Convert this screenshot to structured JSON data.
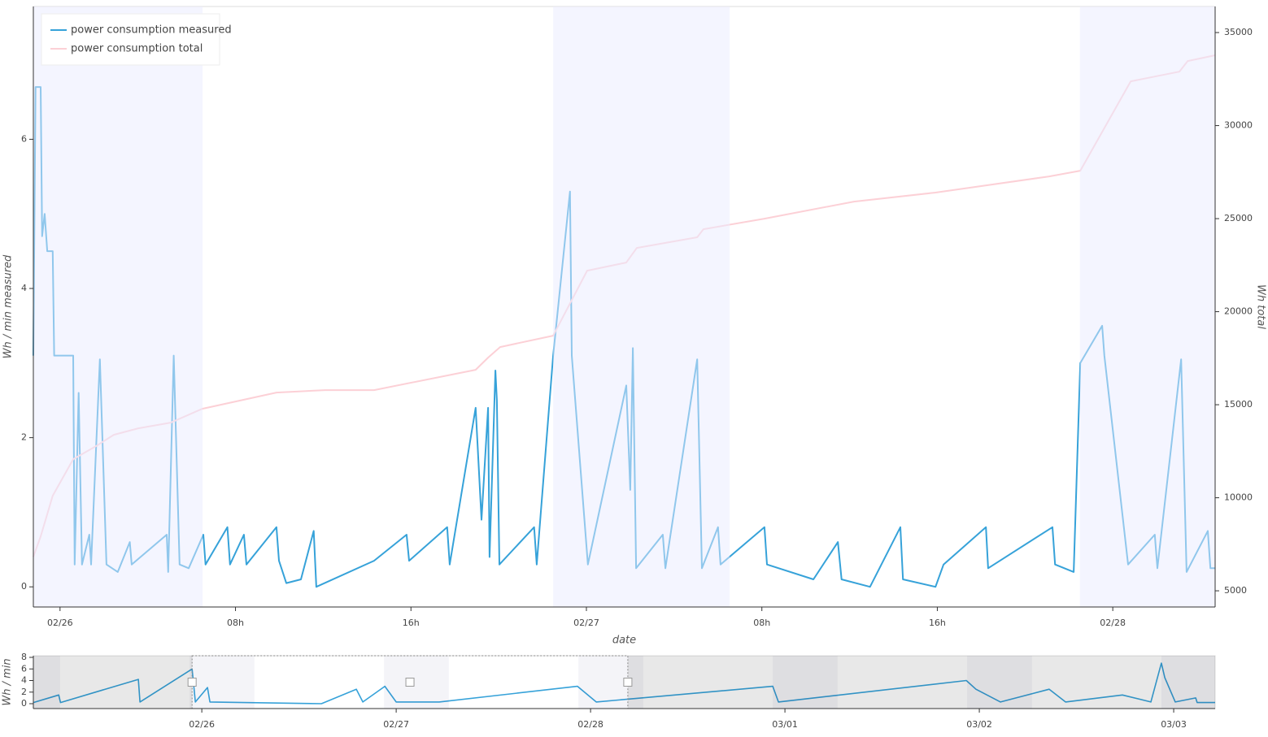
{
  "chart_data": [
    {
      "type": "line",
      "xlabel": "date",
      "ylabel": "Wh / min measured",
      "y2label": "Wh total",
      "xlim": [
        "02/25 22:47",
        "02/28 04:40"
      ],
      "xticks": [
        {
          "value": "02/26 00:00",
          "label": "02/26"
        },
        {
          "value": "02/26 08:00",
          "label": "08h"
        },
        {
          "value": "02/26 16:00",
          "label": "16h"
        },
        {
          "value": "02/27 00:00",
          "label": "02/27"
        },
        {
          "value": "02/27 08:00",
          "label": "08h"
        },
        {
          "value": "02/27 16:00",
          "label": "16h"
        },
        {
          "value": "02/28 00:00",
          "label": "02/28"
        }
      ],
      "ylim": [
        -0.27,
        7.78
      ],
      "yticks": [
        0,
        2,
        4,
        6
      ],
      "y2lim": [
        4130,
        36400
      ],
      "y2ticks": [
        5000,
        10000,
        15000,
        20000,
        25000,
        30000,
        35000
      ],
      "legend": "upper left",
      "shaded_ranges": [
        [
          "02/25 22:47",
          "02/26 06:30"
        ],
        [
          "02/26 22:29",
          "02/27 06:32"
        ],
        [
          "02/27 22:30",
          "02/28 04:40"
        ]
      ],
      "shade_color": "#e9ebff",
      "series": [
        {
          "name": "power consumption measured",
          "color": "#36a2d9",
          "x": [
            "02/25 22:47",
            "02/25 22:53",
            "02/25 23:07",
            "02/25 23:11",
            "02/25 23:18",
            "02/25 23:25",
            "02/25 23:40",
            "02/25 23:44",
            "02/26 00:36",
            "02/26 00:40",
            "02/26 00:51",
            "02/26 01:00",
            "02/26 01:20",
            "02/26 01:25",
            "02/26 01:49",
            "02/26 02:07",
            "02/26 02:38",
            "02/26 03:11",
            "02/26 03:16",
            "02/26 04:52",
            "02/26 04:56",
            "02/26 05:11",
            "02/26 05:27",
            "02/26 05:52",
            "02/26 06:32",
            "02/26 06:38",
            "02/26 07:38",
            "02/26 07:45",
            "02/26 08:23",
            "02/26 08:30",
            "02/26 09:52",
            "02/26 09:59",
            "02/26 10:19",
            "02/26 10:59",
            "02/26 11:34",
            "02/26 11:41",
            "02/26 14:19",
            "02/26 15:48",
            "02/26 15:55",
            "02/26 17:39",
            "02/26 17:46",
            "02/26 18:57",
            "02/26 19:13",
            "02/26 19:31",
            "02/26 19:35",
            "02/26 19:51",
            "02/26 19:55",
            "02/26 20:02",
            "02/26 21:37",
            "02/26 21:44",
            "02/26 22:29",
            "02/26 23:15",
            "02/26 23:20",
            "02/27 00:04",
            "02/27 01:49",
            "02/27 02:00",
            "02/27 02:07",
            "02/27 02:16",
            "02/27 03:29",
            "02/27 03:36",
            "02/27 05:03",
            "02/27 05:16",
            "02/27 06:00",
            "02/27 06:07",
            "02/27 08:07",
            "02/27 08:14",
            "02/27 10:21",
            "02/27 11:28",
            "02/27 11:38",
            "02/27 12:56",
            "02/27 14:19",
            "02/27 14:26",
            "02/27 15:55",
            "02/27 16:17",
            "02/27 18:13",
            "02/27 18:19",
            "02/27 21:15",
            "02/27 21:22",
            "02/27 22:13",
            "02/27 22:31",
            "02/27 23:31",
            "02/27 23:37",
            "02/28 00:42",
            "02/28 01:55",
            "02/28 02:02",
            "02/28 03:07",
            "02/28 03:22",
            "02/28 04:20",
            "02/28 04:27",
            "02/28 04:40"
          ],
          "values": [
            3.1,
            6.7,
            6.7,
            4.7,
            5.0,
            4.5,
            4.5,
            3.1,
            3.1,
            0.3,
            2.6,
            0.3,
            0.7,
            0.3,
            3.05,
            0.3,
            0.2,
            0.6,
            0.3,
            0.7,
            0.2,
            3.1,
            0.3,
            0.25,
            0.7,
            0.3,
            0.8,
            0.3,
            0.7,
            0.3,
            0.8,
            0.35,
            0.05,
            0.1,
            0.75,
            0,
            0.35,
            0.7,
            0.35,
            0.8,
            0.3,
            2.4,
            0.9,
            2.4,
            0.4,
            2.9,
            2.5,
            0.3,
            0.8,
            0.3,
            3.1,
            5.3,
            3.1,
            0.3,
            2.7,
            1.3,
            3.2,
            0.25,
            0.7,
            0.25,
            3.05,
            0.25,
            0.8,
            0.3,
            0.8,
            0.3,
            0.1,
            0.6,
            0.1,
            0,
            0.8,
            0.1,
            0,
            0.3,
            0.8,
            0.25,
            0.8,
            0.3,
            0.2,
            3.0,
            3.5,
            3.1,
            0.3,
            0.7,
            0.25,
            3.05,
            0.2,
            0.75,
            0.25,
            0.25
          ]
        },
        {
          "name": "power consumption total",
          "color": "#fcd0d6",
          "axis": "y2",
          "x": [
            "02/25 22:47",
            "02/25 23:07",
            "02/25 23:40",
            "02/26 00:36",
            "02/26 01:42",
            "02/26 02:27",
            "02/26 03:34",
            "02/26 05:03",
            "02/26 06:29",
            "02/26 09:52",
            "02/26 12:05",
            "02/26 14:19",
            "02/26 17:39",
            "02/26 18:57",
            "02/26 19:31",
            "02/26 20:04",
            "02/26 22:29",
            "02/27 00:02",
            "02/27 01:49",
            "02/27 02:18",
            "02/27 05:03",
            "02/27 05:20",
            "02/27 08:07",
            "02/27 12:12",
            "02/27 15:55",
            "02/27 21:06",
            "02/27 22:31",
            "02/28 00:49",
            "02/28 03:02",
            "02/28 03:25",
            "02/28 04:40"
          ],
          "values": [
            6834,
            7926,
            10110,
            12074,
            12817,
            13384,
            13734,
            14040,
            14782,
            15655,
            15786,
            15786,
            16572,
            16878,
            17533,
            18100,
            18712,
            22205,
            22642,
            23428,
            24000,
            24432,
            25000,
            25917,
            26400,
            27270,
            27575,
            32380,
            32900,
            33470,
            33780
          ]
        }
      ]
    },
    {
      "type": "line",
      "ylabel": "Wh / min",
      "xlim": [
        "02/25 03:12",
        "03/03 05:07"
      ],
      "xticks": [
        {
          "value": "02/26 00:00",
          "label": "02/26"
        },
        {
          "value": "02/27 00:00",
          "label": "02/27"
        },
        {
          "value": "02/28 00:00",
          "label": "02/28"
        },
        {
          "value": "03/01 00:00",
          "label": "03/01"
        },
        {
          "value": "03/02 00:00",
          "label": "03/02"
        },
        {
          "value": "03/03 00:00",
          "label": "03/03"
        }
      ],
      "ylim": [
        -0.84,
        8.28
      ],
      "yticks": [
        0,
        2,
        4,
        6,
        8
      ],
      "selection": [
        "02/25 22:48",
        "02/28 04:36"
      ],
      "shaded_ranges": [
        [
          "02/25 03:12",
          "02/25 06:30"
        ],
        [
          "02/25 22:30",
          "02/26 06:30"
        ],
        [
          "02/26 22:30",
          "02/27 06:30"
        ],
        [
          "02/27 22:30",
          "02/28 06:30"
        ],
        [
          "02/28 22:30",
          "03/01 06:30"
        ],
        [
          "03/01 22:30",
          "03/02 06:30"
        ],
        [
          "03/02 22:30",
          "03/03 05:07"
        ]
      ],
      "series": [
        {
          "color": "#36a2d9",
          "x": [
            "02/25 03:12",
            "02/25 06:20",
            "02/25 06:33",
            "02/25 16:10",
            "02/25 16:22",
            "02/25 22:48",
            "02/25 23:12",
            "02/26 00:42",
            "02/26 01:00",
            "02/26 14:46",
            "02/26 19:05",
            "02/26 19:53",
            "02/26 22:36",
            "02/27 00:00",
            "02/27 05:19",
            "02/27 22:23",
            "02/28 00:42",
            "02/28 22:30",
            "02/28 23:12",
            "03/01 22:24",
            "03/01 23:35",
            "03/02 02:37",
            "03/02 08:38",
            "03/02 10:39",
            "03/02 17:40",
            "03/02 21:11",
            "03/02 22:29",
            "03/02 22:54",
            "03/03 00:12",
            "03/03 02:43",
            "03/03 02:54",
            "03/03 05:07"
          ],
          "values": [
            0.2,
            1.5,
            0.2,
            4.2,
            0.3,
            6,
            0.3,
            2.8,
            0.3,
            0,
            2.5,
            0.3,
            3,
            0.3,
            0.3,
            3,
            0.3,
            3,
            0.3,
            4,
            2.5,
            0.3,
            2.5,
            0.3,
            1.5,
            0.3,
            7,
            4.5,
            0.3,
            1,
            0.2,
            0.2
          ]
        }
      ]
    }
  ]
}
